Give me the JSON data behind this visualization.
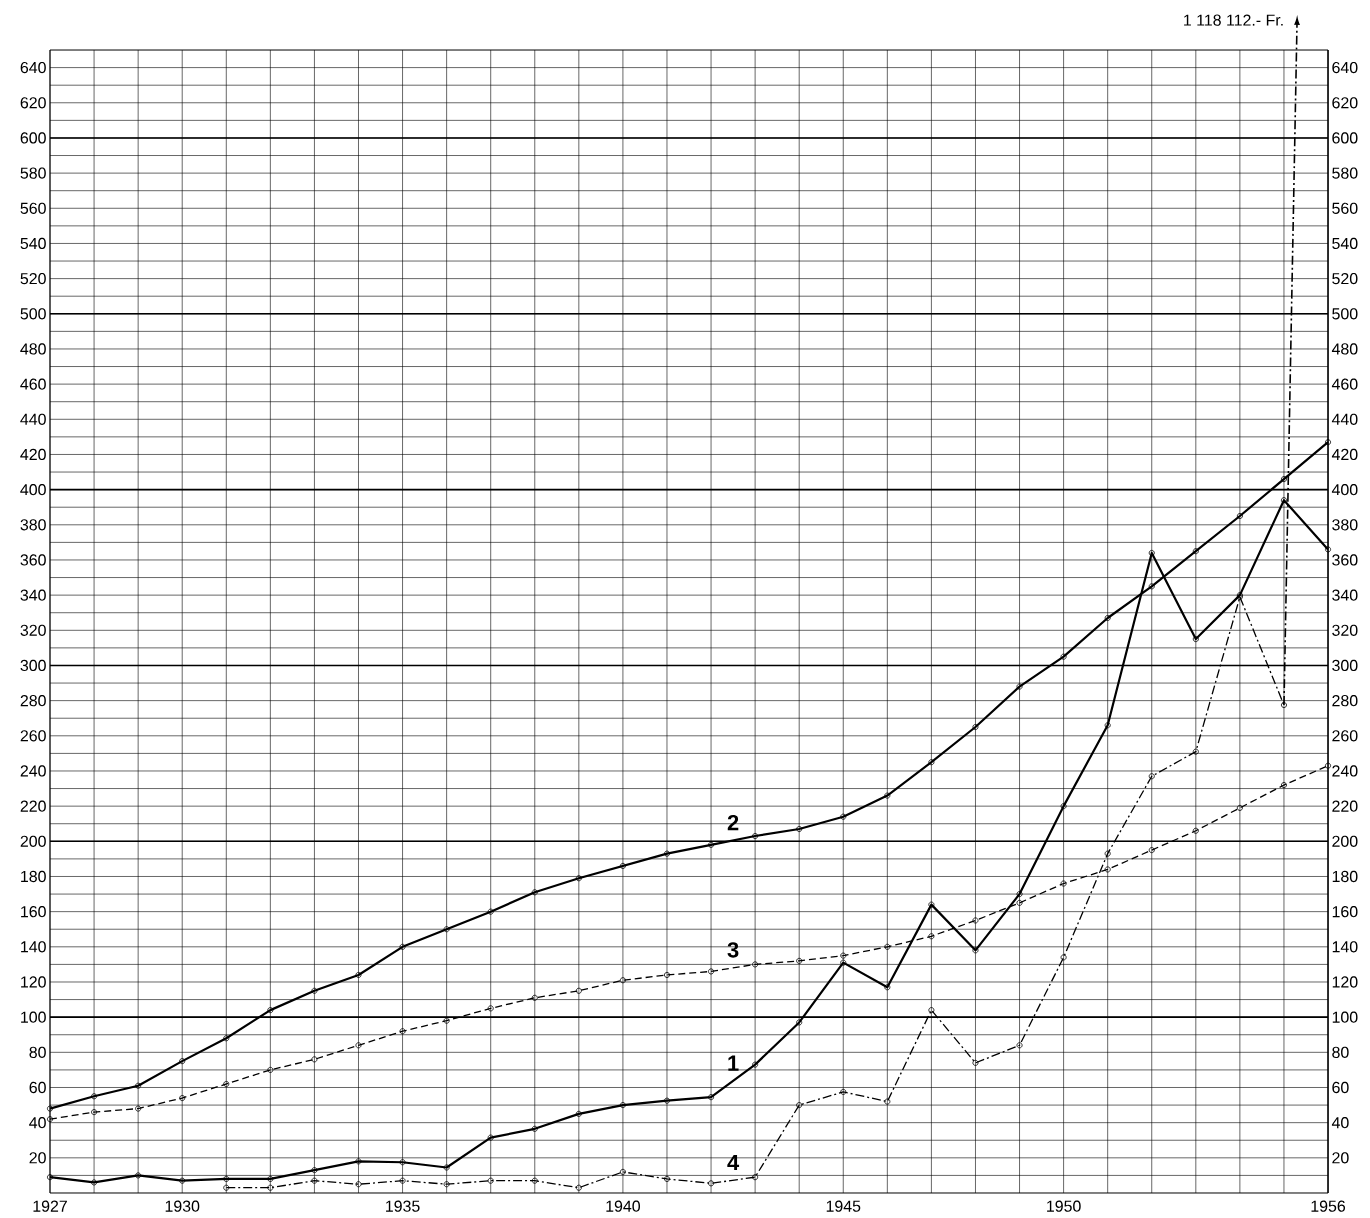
{
  "chart_data": {
    "type": "line",
    "x": [
      1927,
      1928,
      1929,
      1930,
      1931,
      1932,
      1933,
      1934,
      1935,
      1936,
      1937,
      1938,
      1939,
      1940,
      1941,
      1942,
      1943,
      1944,
      1945,
      1946,
      1947,
      1948,
      1949,
      1950,
      1951,
      1952,
      1953,
      1954,
      1955,
      1956
    ],
    "series": [
      {
        "name": "1",
        "color": "#000000",
        "line_style": "solid",
        "values": [
          9,
          6,
          10,
          7,
          8,
          8,
          13,
          18,
          17.5,
          14.5,
          31.5,
          36.5,
          45,
          50,
          52.5,
          54.5,
          73,
          97,
          131,
          117,
          164,
          138,
          170,
          220,
          266,
          364,
          315,
          340,
          394,
          366
        ]
      },
      {
        "name": "2",
        "color": "#000000",
        "line_style": "solid",
        "values": [
          48,
          55,
          61,
          75,
          88,
          104,
          115,
          124,
          140,
          150,
          160,
          171,
          179,
          186,
          193,
          198,
          203,
          207,
          214,
          226,
          245,
          265,
          288,
          305,
          327,
          345,
          365,
          385,
          406,
          427
        ]
      },
      {
        "name": "3",
        "color": "#000000",
        "line_style": "dashed",
        "values": [
          42,
          46,
          48,
          54,
          62,
          70,
          76,
          84,
          92,
          98,
          105,
          111,
          115,
          121,
          124,
          126,
          130,
          132,
          135,
          140,
          146,
          155,
          165,
          176,
          184,
          195,
          206,
          219,
          232,
          243
        ]
      },
      {
        "name": "4",
        "color": "#000000",
        "line_style": "dashdot",
        "values": [
          null,
          null,
          null,
          null,
          3,
          3,
          7,
          5,
          7,
          5,
          7,
          7,
          3,
          12,
          8,
          5.5,
          9,
          50,
          57.5,
          52,
          104,
          74,
          84,
          134,
          193,
          237,
          251,
          339,
          277.5,
          null
        ]
      }
    ],
    "xlim": [
      1927,
      1956
    ],
    "xticks": [
      1927,
      {
        "value": 1928,
        "label": null
      },
      {
        "value": 1929,
        "label": null
      },
      1930,
      {
        "value": 1931,
        "label": null
      },
      {
        "value": 1932,
        "label": null
      },
      {
        "value": 1933,
        "label": null
      },
      {
        "value": 1934,
        "label": null
      },
      1935,
      {
        "value": 1936,
        "label": null
      },
      {
        "value": 1937,
        "label": null
      },
      {
        "value": 1938,
        "label": null
      },
      {
        "value": 1939,
        "label": null
      },
      1940,
      {
        "value": 1941,
        "label": null
      },
      {
        "value": 1942,
        "label": null
      },
      {
        "value": 1943,
        "label": null
      },
      {
        "value": 1944,
        "label": null
      },
      1945,
      {
        "value": 1946,
        "label": null
      },
      {
        "value": 1947,
        "label": null
      },
      {
        "value": 1948,
        "label": null
      },
      {
        "value": 1949,
        "label": null
      },
      1950,
      {
        "value": 1951,
        "label": null
      },
      {
        "value": 1952,
        "label": null
      },
      {
        "value": 1953,
        "label": null
      },
      {
        "value": 1954,
        "label": null
      },
      {
        "value": 1955,
        "label": null
      },
      1956
    ],
    "ylim": [
      0,
      650
    ],
    "yticks": [
      {
        "value": 10,
        "label": null
      },
      20,
      {
        "value": 30,
        "label": null
      },
      40,
      {
        "value": 50,
        "label": null
      },
      60,
      {
        "value": 70,
        "label": null
      },
      80,
      {
        "value": 90,
        "label": null
      },
      100,
      {
        "value": 110,
        "label": null
      },
      120,
      {
        "value": 130,
        "label": null
      },
      140,
      {
        "value": 150,
        "label": null
      },
      160,
      {
        "value": 170,
        "label": null
      },
      180,
      {
        "value": 190,
        "label": null
      },
      200,
      {
        "value": 210,
        "label": null
      },
      220,
      {
        "value": 230,
        "label": null
      },
      240,
      {
        "value": 250,
        "label": null
      },
      260,
      {
        "value": 270,
        "label": null
      },
      280,
      {
        "value": 290,
        "label": null
      },
      300,
      {
        "value": 310,
        "label": null
      },
      320,
      {
        "value": 330,
        "label": null
      },
      340,
      {
        "value": 350,
        "label": null
      },
      360,
      {
        "value": 370,
        "label": null
      },
      380,
      {
        "value": 390,
        "label": null
      },
      400,
      {
        "value": 410,
        "label": null
      },
      420,
      {
        "value": 430,
        "label": null
      },
      440,
      {
        "value": 450,
        "label": null
      },
      460,
      {
        "value": 470,
        "label": null
      },
      480,
      {
        "value": 490,
        "label": null
      },
      500,
      {
        "value": 510,
        "label": null
      },
      520,
      {
        "value": 530,
        "label": null
      },
      540,
      {
        "value": 550,
        "label": null
      },
      560,
      {
        "value": 570,
        "label": null
      },
      580,
      {
        "value": 590,
        "label": null
      },
      600,
      {
        "value": 610,
        "label": null
      },
      620,
      {
        "value": 630,
        "label": null
      },
      640
    ],
    "y2lim": [
      0,
      650
    ],
    "y2ticks": [
      20,
      40,
      60,
      80,
      100,
      120,
      140,
      160,
      180,
      200,
      220,
      240,
      260,
      280,
      300,
      320,
      340,
      360,
      380,
      400,
      420,
      440,
      460,
      480,
      500,
      520,
      540,
      560,
      580,
      600,
      620,
      640
    ],
    "grid": true,
    "legend": false,
    "marker": "circle",
    "annotations": [
      "1 118 112.- Fr."
    ]
  }
}
